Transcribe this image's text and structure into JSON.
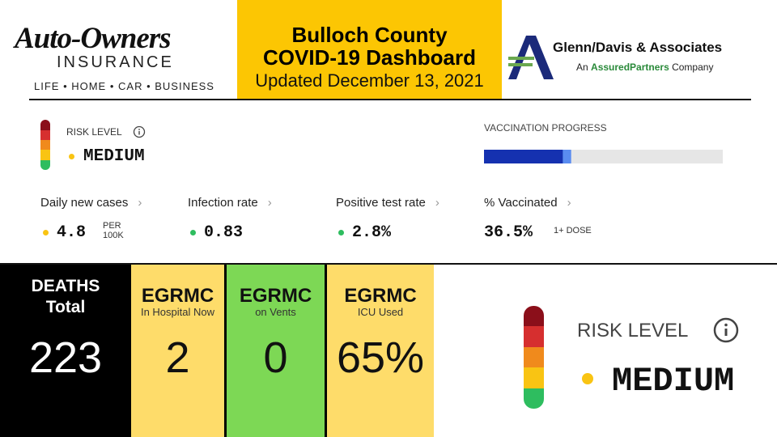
{
  "header": {
    "sponsor_left": {
      "name": "Auto-Owners",
      "sub": "INSURANCE",
      "tagline": "LIFE • HOME • CAR • BUSINESS"
    },
    "title_lines": [
      "Bulloch County",
      "COVID-19 Dashboard"
    ],
    "updated": "Updated December 13, 2021",
    "sponsor_right": {
      "name": "Glenn/Davis & Associates",
      "sub_prefix": "An",
      "sub_brand": "AssuredPartners",
      "sub_suffix": "Company"
    }
  },
  "risk": {
    "label": "RISK LEVEL",
    "level": "MEDIUM"
  },
  "vaccination": {
    "label": "VACCINATION PROGRESS",
    "xlim": [
      0,
      100
    ],
    "progress": [
      33,
      36.5
    ]
  },
  "metrics": [
    {
      "label": "Daily new cases",
      "value": "4.8",
      "unit": [
        "PER",
        "100K"
      ]
    },
    {
      "label": "Infection rate",
      "value": "0.83"
    },
    {
      "label": "Positive test rate",
      "value": "2.8%"
    },
    {
      "label": "% Vaccinated",
      "value": "36.5%",
      "unit": [
        "1+ DOSE"
      ]
    }
  ],
  "tiles": [
    {
      "title": [
        "DEATHS",
        "Total"
      ],
      "value": "223"
    },
    {
      "title": [
        "EGRMC"
      ],
      "subtitle": "In Hospital Now",
      "value": "2"
    },
    {
      "title": [
        "EGRMC"
      ],
      "subtitle": "on Vents",
      "value": "0"
    },
    {
      "title": [
        "EGRMC"
      ],
      "subtitle": "ICU Used",
      "value": "65%"
    }
  ],
  "risk_large": {
    "label": "RISK LEVEL",
    "level": "MEDIUM"
  }
}
